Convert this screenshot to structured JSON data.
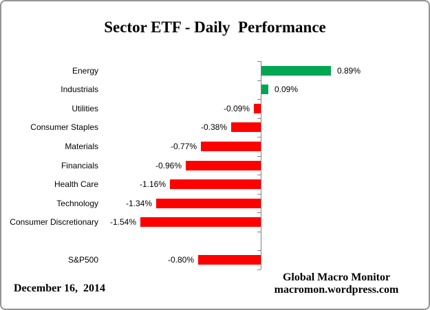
{
  "title": "Sector ETF - Daily  Performance",
  "footer": {
    "date": "December 16,  2014",
    "credit_line1": "Global Macro Monitor",
    "credit_line2": "macromon.wordpress.com"
  },
  "chart_data": {
    "type": "bar",
    "orientation": "horizontal",
    "title": "Sector ETF - Daily  Performance",
    "categories": [
      "Energy",
      "Industrials",
      "Utilities",
      "Consumer Staples",
      "Materials",
      "Financials",
      "Health Care",
      "Technology",
      "Consumer Discretionary",
      "",
      "S&P500"
    ],
    "values": [
      0.89,
      0.09,
      -0.09,
      -0.38,
      -0.77,
      -0.96,
      -1.16,
      -1.34,
      -1.54,
      null,
      -0.8
    ],
    "value_labels": [
      "0.89%",
      "0.09%",
      "-0.09%",
      "-0.38%",
      "-0.77%",
      "-0.96%",
      "-1.16%",
      "-1.34%",
      "-1.54%",
      "",
      "-0.80%"
    ],
    "unit": "%",
    "positive_color": "#00A651",
    "negative_color": "#FF0000",
    "axis_color": "#808080",
    "grid": false,
    "legend": false
  }
}
